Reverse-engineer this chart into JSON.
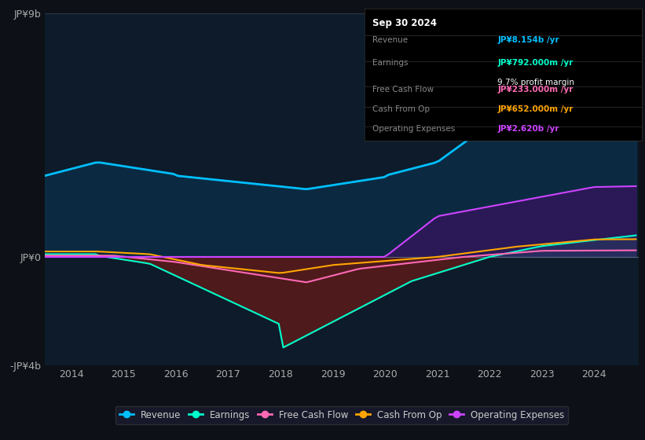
{
  "background_color": "#0d1117",
  "plot_bg_color": "#0d1b2a",
  "ylim": [
    -4000000000.0,
    9000000000.0
  ],
  "ytick_labels": [
    "-JP¥4b",
    "JP¥0",
    "JP¥9b"
  ],
  "xtick_labels": [
    "2014",
    "2015",
    "2016",
    "2017",
    "2018",
    "2019",
    "2020",
    "2021",
    "2022",
    "2023",
    "2024"
  ],
  "colors": {
    "revenue": "#00bfff",
    "earnings": "#00ffcc",
    "free_cash_flow": "#ff69b4",
    "cash_from_op": "#ffa500",
    "operating_expenses": "#cc44ff"
  },
  "fill_colors": {
    "revenue": "#0a3a5a",
    "earnings_neg": "#5a1a1a",
    "earnings_pos": "#008866",
    "operating_expenses": "#4a0a6a"
  },
  "info_box": {
    "date": "Sep 30 2024",
    "revenue_val": "JP¥8.154b",
    "earnings_val": "JP¥792.000m",
    "profit_margin": "9.7%",
    "fcf_val": "JP¥233.000m",
    "cash_from_op_val": "JP¥652.000m",
    "op_exp_val": "JP¥2.620b"
  },
  "legend": [
    {
      "label": "Revenue",
      "color": "#00bfff"
    },
    {
      "label": "Earnings",
      "color": "#00ffcc"
    },
    {
      "label": "Free Cash Flow",
      "color": "#ff69b4"
    },
    {
      "label": "Cash From Op",
      "color": "#ffa500"
    },
    {
      "label": "Operating Expenses",
      "color": "#cc44ff"
    }
  ]
}
